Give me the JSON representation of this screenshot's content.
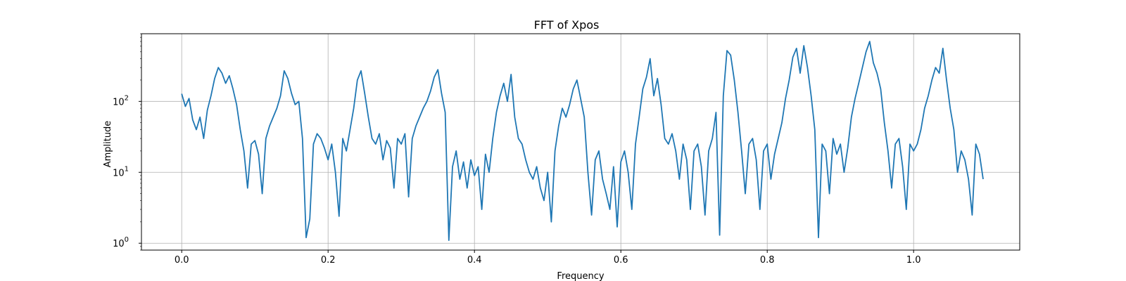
{
  "chart_data": {
    "type": "line",
    "title": "FFT of Xpos",
    "xlabel": "Frequency",
    "ylabel": "Amplitude",
    "xlim": [
      -0.055,
      1.145
    ],
    "ylim": [
      0.8,
      900
    ],
    "yscale": "log",
    "grid": true,
    "x_ticks": [
      {
        "value": 0.0,
        "label": "0.0"
      },
      {
        "value": 0.2,
        "label": "0.2"
      },
      {
        "value": 0.4,
        "label": "0.4"
      },
      {
        "value": 0.6,
        "label": "0.6"
      },
      {
        "value": 0.8,
        "label": "0.8"
      },
      {
        "value": 1.0,
        "label": "1.0"
      }
    ],
    "y_ticks": [
      {
        "value": 1,
        "base": "10",
        "exp": "0"
      },
      {
        "value": 10,
        "base": "10",
        "exp": "1"
      },
      {
        "value": 100,
        "base": "10",
        "exp": "2"
      }
    ],
    "series": [
      {
        "color": "#1f77b4",
        "points": [
          [
            0.0,
            128
          ],
          [
            0.005,
            85
          ],
          [
            0.01,
            110
          ],
          [
            0.015,
            55
          ],
          [
            0.02,
            40
          ],
          [
            0.025,
            60
          ],
          [
            0.03,
            30
          ],
          [
            0.035,
            75
          ],
          [
            0.04,
            120
          ],
          [
            0.045,
            210
          ],
          [
            0.05,
            300
          ],
          [
            0.055,
            250
          ],
          [
            0.06,
            180
          ],
          [
            0.065,
            230
          ],
          [
            0.07,
            150
          ],
          [
            0.075,
            90
          ],
          [
            0.08,
            40
          ],
          [
            0.085,
            20
          ],
          [
            0.09,
            6
          ],
          [
            0.095,
            25
          ],
          [
            0.1,
            28
          ],
          [
            0.105,
            18
          ],
          [
            0.11,
            5
          ],
          [
            0.115,
            30
          ],
          [
            0.12,
            45
          ],
          [
            0.125,
            60
          ],
          [
            0.13,
            80
          ],
          [
            0.135,
            120
          ],
          [
            0.14,
            270
          ],
          [
            0.145,
            210
          ],
          [
            0.15,
            130
          ],
          [
            0.155,
            90
          ],
          [
            0.16,
            100
          ],
          [
            0.165,
            30
          ],
          [
            0.17,
            1.2
          ],
          [
            0.175,
            2.2
          ],
          [
            0.18,
            25
          ],
          [
            0.185,
            35
          ],
          [
            0.19,
            30
          ],
          [
            0.195,
            22
          ],
          [
            0.2,
            15
          ],
          [
            0.205,
            25
          ],
          [
            0.21,
            10
          ],
          [
            0.215,
            2.4
          ],
          [
            0.22,
            30
          ],
          [
            0.225,
            20
          ],
          [
            0.23,
            40
          ],
          [
            0.235,
            80
          ],
          [
            0.24,
            200
          ],
          [
            0.245,
            270
          ],
          [
            0.25,
            130
          ],
          [
            0.255,
            60
          ],
          [
            0.26,
            30
          ],
          [
            0.265,
            25
          ],
          [
            0.27,
            35
          ],
          [
            0.275,
            15
          ],
          [
            0.28,
            28
          ],
          [
            0.285,
            22
          ],
          [
            0.29,
            6
          ],
          [
            0.295,
            30
          ],
          [
            0.3,
            25
          ],
          [
            0.305,
            35
          ],
          [
            0.31,
            4.5
          ],
          [
            0.315,
            30
          ],
          [
            0.32,
            45
          ],
          [
            0.325,
            60
          ],
          [
            0.33,
            80
          ],
          [
            0.335,
            100
          ],
          [
            0.34,
            140
          ],
          [
            0.345,
            220
          ],
          [
            0.35,
            280
          ],
          [
            0.355,
            130
          ],
          [
            0.36,
            70
          ],
          [
            0.365,
            1.1
          ],
          [
            0.37,
            12
          ],
          [
            0.375,
            20
          ],
          [
            0.38,
            8
          ],
          [
            0.385,
            14
          ],
          [
            0.39,
            6
          ],
          [
            0.395,
            15
          ],
          [
            0.4,
            9
          ],
          [
            0.405,
            12
          ],
          [
            0.41,
            3
          ],
          [
            0.415,
            18
          ],
          [
            0.42,
            10
          ],
          [
            0.425,
            30
          ],
          [
            0.43,
            70
          ],
          [
            0.435,
            120
          ],
          [
            0.44,
            180
          ],
          [
            0.445,
            100
          ],
          [
            0.45,
            240
          ],
          [
            0.455,
            60
          ],
          [
            0.46,
            30
          ],
          [
            0.465,
            25
          ],
          [
            0.47,
            15
          ],
          [
            0.475,
            10
          ],
          [
            0.48,
            8
          ],
          [
            0.485,
            12
          ],
          [
            0.49,
            6
          ],
          [
            0.495,
            4
          ],
          [
            0.5,
            10
          ],
          [
            0.505,
            2
          ],
          [
            0.51,
            20
          ],
          [
            0.515,
            45
          ],
          [
            0.52,
            80
          ],
          [
            0.525,
            60
          ],
          [
            0.53,
            90
          ],
          [
            0.535,
            150
          ],
          [
            0.54,
            200
          ],
          [
            0.545,
            110
          ],
          [
            0.55,
            60
          ],
          [
            0.555,
            10
          ],
          [
            0.56,
            2.5
          ],
          [
            0.565,
            15
          ],
          [
            0.57,
            20
          ],
          [
            0.575,
            8
          ],
          [
            0.58,
            5
          ],
          [
            0.585,
            3
          ],
          [
            0.59,
            12
          ],
          [
            0.595,
            1.7
          ],
          [
            0.6,
            14
          ],
          [
            0.605,
            20
          ],
          [
            0.61,
            10
          ],
          [
            0.615,
            3
          ],
          [
            0.62,
            25
          ],
          [
            0.625,
            60
          ],
          [
            0.63,
            150
          ],
          [
            0.635,
            220
          ],
          [
            0.64,
            400
          ],
          [
            0.645,
            120
          ],
          [
            0.65,
            210
          ],
          [
            0.655,
            90
          ],
          [
            0.66,
            30
          ],
          [
            0.665,
            25
          ],
          [
            0.67,
            35
          ],
          [
            0.675,
            20
          ],
          [
            0.68,
            8
          ],
          [
            0.685,
            25
          ],
          [
            0.69,
            15
          ],
          [
            0.695,
            3
          ],
          [
            0.7,
            20
          ],
          [
            0.705,
            25
          ],
          [
            0.71,
            12
          ],
          [
            0.715,
            2.5
          ],
          [
            0.72,
            20
          ],
          [
            0.725,
            30
          ],
          [
            0.73,
            70
          ],
          [
            0.735,
            1.3
          ],
          [
            0.74,
            120
          ],
          [
            0.745,
            520
          ],
          [
            0.75,
            450
          ],
          [
            0.755,
            200
          ],
          [
            0.76,
            70
          ],
          [
            0.765,
            20
          ],
          [
            0.77,
            5
          ],
          [
            0.775,
            25
          ],
          [
            0.78,
            30
          ],
          [
            0.785,
            15
          ],
          [
            0.79,
            3
          ],
          [
            0.795,
            20
          ],
          [
            0.8,
            25
          ],
          [
            0.805,
            8
          ],
          [
            0.81,
            18
          ],
          [
            0.815,
            30
          ],
          [
            0.82,
            50
          ],
          [
            0.825,
            110
          ],
          [
            0.83,
            200
          ],
          [
            0.835,
            420
          ],
          [
            0.84,
            560
          ],
          [
            0.845,
            250
          ],
          [
            0.85,
            610
          ],
          [
            0.855,
            300
          ],
          [
            0.86,
            120
          ],
          [
            0.865,
            40
          ],
          [
            0.87,
            1.2
          ],
          [
            0.875,
            25
          ],
          [
            0.88,
            20
          ],
          [
            0.885,
            5
          ],
          [
            0.89,
            30
          ],
          [
            0.895,
            18
          ],
          [
            0.9,
            25
          ],
          [
            0.905,
            10
          ],
          [
            0.91,
            22
          ],
          [
            0.915,
            60
          ],
          [
            0.92,
            110
          ],
          [
            0.925,
            180
          ],
          [
            0.93,
            300
          ],
          [
            0.935,
            500
          ],
          [
            0.94,
            700
          ],
          [
            0.945,
            350
          ],
          [
            0.95,
            250
          ],
          [
            0.955,
            150
          ],
          [
            0.96,
            50
          ],
          [
            0.965,
            20
          ],
          [
            0.97,
            6
          ],
          [
            0.975,
            25
          ],
          [
            0.98,
            30
          ],
          [
            0.985,
            12
          ],
          [
            0.99,
            3
          ],
          [
            0.995,
            25
          ],
          [
            1.0,
            20
          ],
          [
            1.005,
            25
          ],
          [
            1.01,
            40
          ],
          [
            1.015,
            80
          ],
          [
            1.02,
            120
          ],
          [
            1.025,
            200
          ],
          [
            1.03,
            300
          ],
          [
            1.035,
            250
          ],
          [
            1.04,
            560
          ],
          [
            1.045,
            200
          ],
          [
            1.05,
            80
          ],
          [
            1.055,
            40
          ],
          [
            1.06,
            10
          ],
          [
            1.065,
            20
          ],
          [
            1.07,
            15
          ],
          [
            1.075,
            8
          ],
          [
            1.08,
            2.5
          ],
          [
            1.085,
            25
          ],
          [
            1.09,
            18
          ],
          [
            1.095,
            8
          ]
        ]
      }
    ]
  }
}
